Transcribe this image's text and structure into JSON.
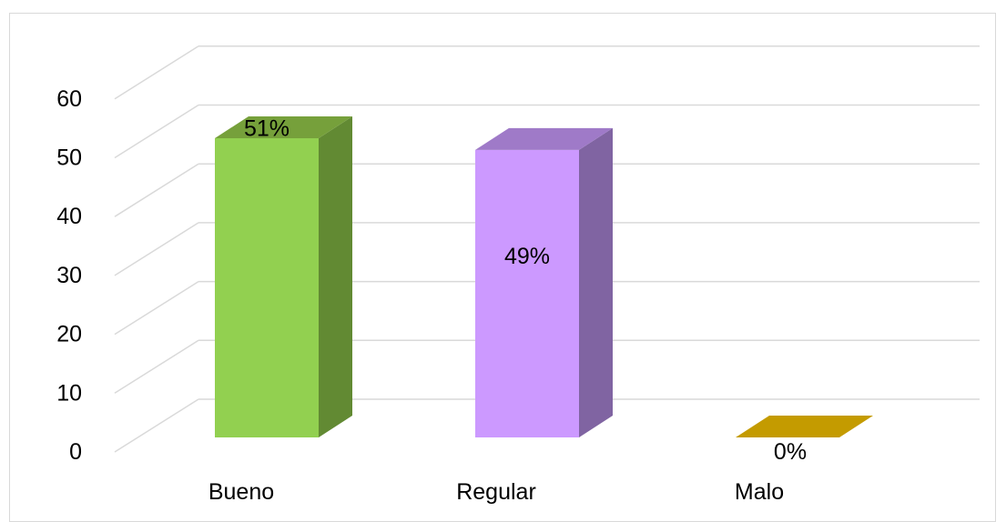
{
  "chart_data": {
    "type": "bar",
    "style": "3d-column",
    "categories": [
      "Bueno",
      "Regular",
      "Malo"
    ],
    "values": [
      51,
      49,
      0
    ],
    "data_labels": [
      "51%",
      "49%",
      "0%"
    ],
    "ylim": [
      0,
      60
    ],
    "yticks": [
      "0",
      "10",
      "20",
      "30",
      "40",
      "50",
      "60"
    ],
    "grid": true,
    "legend": "none",
    "colors": {
      "Bueno": {
        "front": "#92d050",
        "side": "#628a33",
        "top": "#76a03b"
      },
      "Regular": {
        "front": "#cc99ff",
        "side": "#8064a2",
        "top": "#9f7ac8"
      },
      "Malo": {
        "front": "#c9a000",
        "side": "#a07f00",
        "top": "#c49b00"
      }
    }
  }
}
